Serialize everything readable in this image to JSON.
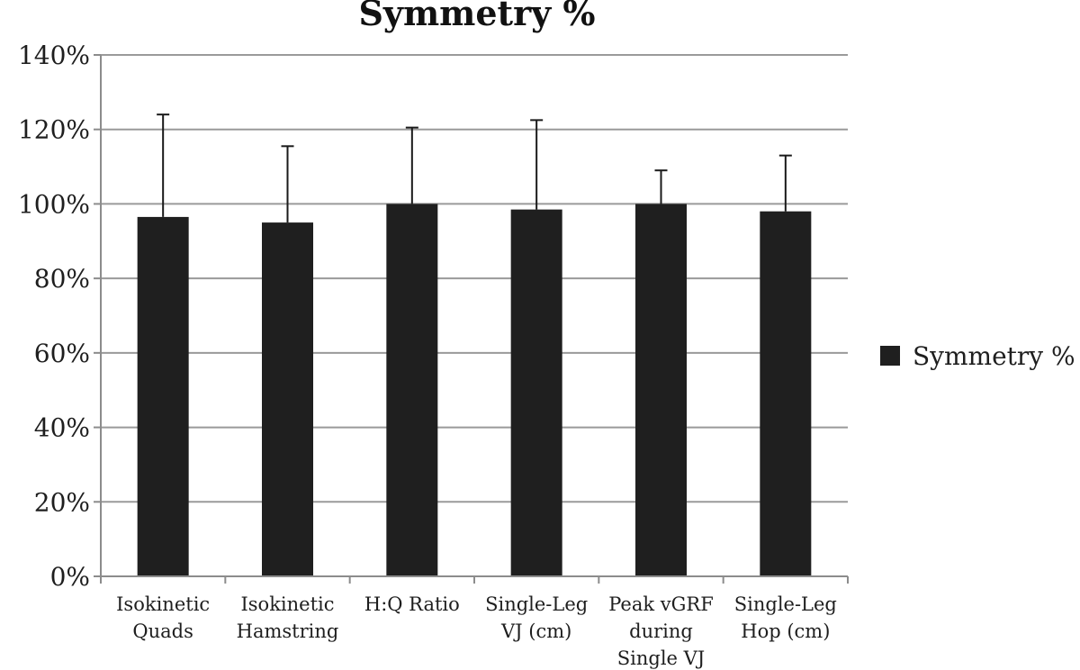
{
  "chart_data": {
    "type": "bar",
    "title": "Symmetry %",
    "categories": [
      [
        "Isokinetic",
        "Quads"
      ],
      [
        "Isokinetic",
        "Hamstring"
      ],
      [
        "H:Q Ratio"
      ],
      [
        "Single-Leg",
        "VJ (cm)"
      ],
      [
        "Peak vGRF",
        "during",
        "Single VJ"
      ],
      [
        "Single-Leg",
        "Hop (cm)"
      ]
    ],
    "series": [
      {
        "name": "Symmetry %",
        "values": [
          96.5,
          95,
          100,
          98.5,
          100,
          98
        ],
        "error_upper": [
          124,
          115.5,
          120.5,
          122.5,
          109,
          113
        ]
      }
    ],
    "ylim": [
      0,
      140
    ],
    "yticks": [
      0,
      20,
      40,
      60,
      80,
      100,
      120,
      140
    ],
    "ytick_labels": [
      "0%",
      "20%",
      "40%",
      "60%",
      "80%",
      "100%",
      "120%",
      "140%"
    ],
    "xlabel": "",
    "ylabel": "",
    "grid": true,
    "legend_position": "right",
    "colors": {
      "bar": "#1f1f1f",
      "grid": "#9a9a9a",
      "axis": "#8c8c8c",
      "text": "#1e1e1e"
    }
  }
}
